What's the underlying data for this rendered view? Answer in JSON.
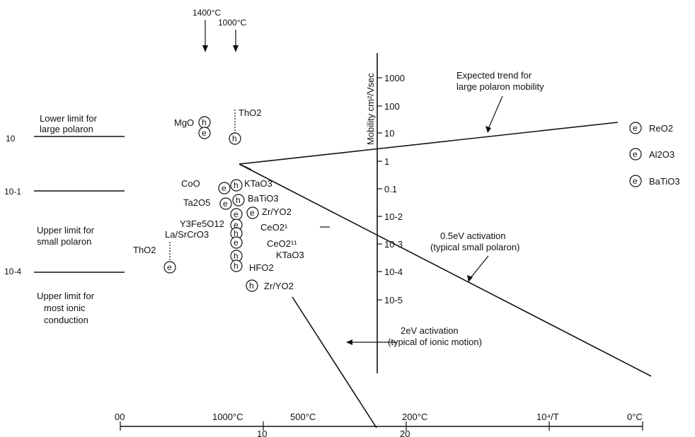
{
  "top_temps": {
    "t1400": "1400°C",
    "t1000": "1000°C"
  },
  "mobility_axis": {
    "label": "Mobility cm²/Vsec",
    "ticks": [
      "1000",
      "100",
      "10",
      "1",
      "0.1",
      "10-2",
      "10-3",
      "10-4",
      "10-5"
    ]
  },
  "left_scale": {
    "values": [
      "10",
      "10-1",
      "10-4"
    ],
    "labels": {
      "lower_limit_large": [
        "Lower limit for",
        "large polaron"
      ],
      "upper_limit_small": [
        "Upper limit for",
        "small polaron"
      ],
      "upper_limit_ionic": [
        "Upper limit for",
        "most ionic",
        "conduction"
      ]
    }
  },
  "bottom_axis": {
    "temp_labels": [
      "00",
      "1000°C",
      "500°C",
      "200°C",
      "0°C"
    ],
    "num_labels": [
      "10",
      "20"
    ],
    "unit": "10⁴/T"
  },
  "annotations": {
    "large_polaron": [
      "Expected trend for",
      "large polaron mobility"
    ],
    "small_polaron": [
      "0.5eV activation",
      "(typical small polaron)"
    ],
    "ionic": [
      "2eV activation",
      "(typical of ionic motion)"
    ]
  },
  "legend": [
    {
      "marker": "e",
      "formula": "ReO2"
    },
    {
      "marker": "e",
      "formula": "Al2O3"
    },
    {
      "marker": "e",
      "formula": "BaTiO3"
    }
  ],
  "markers": {
    "electron": "e",
    "hole": "h"
  },
  "materials": {
    "mgo": "MgO",
    "tho2_top": "ThO2",
    "coo": "CoO",
    "ktao3": "KTaO3",
    "ta2o5": "Ta2O5",
    "batio3": "BaTiO3",
    "zryo2": "Zr/YO2",
    "y3fe5o12": "Y3Fe5O12",
    "lasrcro3": "La/SrCrO3",
    "ceo2_1": "CeO2¹",
    "tho2_left": "ThO2",
    "ceo2_11": "CeO2¹¹",
    "ktao3_low": "KTaO3",
    "hfo2": "HFO2",
    "zryo2_low": "Zr/YO2"
  }
}
